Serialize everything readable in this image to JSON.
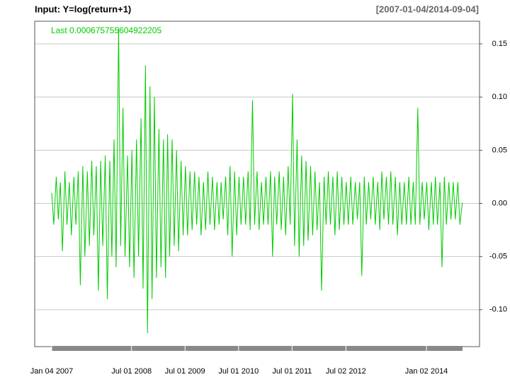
{
  "chart_data": {
    "type": "line",
    "title": "Input: Y=log(return+1)",
    "subtitle": "[2007-01-04/2014-09-04]",
    "annotation": "Last 0.000675755604922205",
    "grid": true,
    "ylim": [
      -0.1347,
      0.1713
    ],
    "yticks": [
      {
        "value": -0.1,
        "label": "-0.10"
      },
      {
        "value": -0.05,
        "label": "-0.05"
      },
      {
        "value": 0,
        "label": "0.00"
      },
      {
        "value": 0.05,
        "label": "0.05"
      },
      {
        "value": 0.1,
        "label": "0.10"
      },
      {
        "value": 0.15,
        "label": "0.15"
      }
    ],
    "xlim": [
      "2006-09-10",
      "2014-12-30"
    ],
    "xticks": [
      {
        "value": "2007-01-04",
        "label": "Jan 04 2007"
      },
      {
        "value": "2008-07-01",
        "label": "Jul 01 2008"
      },
      {
        "value": "2009-07-01",
        "label": "Jul 01 2009"
      },
      {
        "value": "2010-07-01",
        "label": "Jul 01 2010"
      },
      {
        "value": "2011-07-01",
        "label": "Jul 01 2011"
      },
      {
        "value": "2012-07-02",
        "label": "Jul 02 2012"
      },
      {
        "value": "2014-01-02",
        "label": "Jan 02 2014"
      }
    ],
    "x": [
      "2007-01-04",
      "2007-01-18",
      "2007-02-04",
      "2007-02-18",
      "2007-03-04",
      "2007-03-18",
      "2007-04-04",
      "2007-04-18",
      "2007-05-04",
      "2007-05-18",
      "2007-06-04",
      "2007-06-18",
      "2007-07-04",
      "2007-07-18",
      "2007-08-04",
      "2007-08-18",
      "2007-09-04",
      "2007-09-18",
      "2007-10-04",
      "2007-10-18",
      "2007-11-04",
      "2007-11-18",
      "2007-12-04",
      "2007-12-18",
      "2008-01-04",
      "2008-01-18",
      "2008-02-04",
      "2008-02-18",
      "2008-03-04",
      "2008-03-18",
      "2008-04-04",
      "2008-04-18",
      "2008-05-04",
      "2008-05-18",
      "2008-06-04",
      "2008-06-18",
      "2008-07-04",
      "2008-07-18",
      "2008-08-04",
      "2008-08-18",
      "2008-09-04",
      "2008-09-18",
      "2008-10-04",
      "2008-10-18",
      "2008-11-04",
      "2008-11-18",
      "2008-12-04",
      "2008-12-18",
      "2009-01-04",
      "2009-01-18",
      "2009-02-04",
      "2009-02-18",
      "2009-03-04",
      "2009-03-18",
      "2009-04-04",
      "2009-04-18",
      "2009-05-04",
      "2009-05-18",
      "2009-06-04",
      "2009-06-18",
      "2009-07-04",
      "2009-07-18",
      "2009-08-04",
      "2009-08-18",
      "2009-09-04",
      "2009-09-18",
      "2009-10-04",
      "2009-10-18",
      "2009-11-04",
      "2009-11-18",
      "2009-12-04",
      "2009-12-18",
      "2010-01-04",
      "2010-01-18",
      "2010-02-04",
      "2010-02-18",
      "2010-03-04",
      "2010-03-18",
      "2010-04-04",
      "2010-04-18",
      "2010-05-04",
      "2010-05-18",
      "2010-06-04",
      "2010-06-18",
      "2010-07-04",
      "2010-07-18",
      "2010-08-04",
      "2010-08-18",
      "2010-09-04",
      "2010-09-18",
      "2010-10-04",
      "2010-10-18",
      "2010-11-04",
      "2010-11-18",
      "2010-12-04",
      "2010-12-18",
      "2011-01-04",
      "2011-01-18",
      "2011-02-04",
      "2011-02-18",
      "2011-03-04",
      "2011-03-18",
      "2011-04-04",
      "2011-04-18",
      "2011-05-04",
      "2011-05-18",
      "2011-06-04",
      "2011-06-18",
      "2011-07-04",
      "2011-07-18",
      "2011-08-04",
      "2011-08-18",
      "2011-09-04",
      "2011-09-18",
      "2011-10-04",
      "2011-10-18",
      "2011-11-04",
      "2011-11-18",
      "2011-12-04",
      "2011-12-18",
      "2012-01-04",
      "2012-01-18",
      "2012-02-04",
      "2012-02-18",
      "2012-03-04",
      "2012-03-18",
      "2012-04-04",
      "2012-04-18",
      "2012-05-04",
      "2012-05-18",
      "2012-06-04",
      "2012-06-18",
      "2012-07-04",
      "2012-07-18",
      "2012-08-04",
      "2012-08-18",
      "2012-09-04",
      "2012-09-18",
      "2012-10-04",
      "2012-10-18",
      "2012-11-04",
      "2012-11-18",
      "2012-12-04",
      "2012-12-18",
      "2013-01-04",
      "2013-01-18",
      "2013-02-04",
      "2013-02-18",
      "2013-03-04",
      "2013-03-18",
      "2013-04-04",
      "2013-04-18",
      "2013-05-04",
      "2013-05-18",
      "2013-06-04",
      "2013-06-18",
      "2013-07-04",
      "2013-07-18",
      "2013-08-04",
      "2013-08-18",
      "2013-09-04",
      "2013-09-18",
      "2013-10-04",
      "2013-10-18",
      "2013-11-04",
      "2013-11-18",
      "2013-12-04",
      "2013-12-18",
      "2014-01-04",
      "2014-01-18",
      "2014-02-04",
      "2014-02-18",
      "2014-03-04",
      "2014-03-18",
      "2014-04-04",
      "2014-04-18",
      "2014-05-04",
      "2014-05-18",
      "2014-06-04",
      "2014-06-18",
      "2014-07-04",
      "2014-07-18",
      "2014-08-04",
      "2014-08-18",
      "2014-09-04"
    ],
    "color": "#00cc00",
    "values": [
      0.01,
      -0.02,
      0.025,
      -0.015,
      0.02,
      -0.045,
      0.03,
      -0.02,
      0.02,
      -0.03,
      0.025,
      -0.02,
      0.03,
      -0.077,
      0.035,
      -0.05,
      0.03,
      -0.04,
      0.04,
      -0.03,
      0.035,
      -0.082,
      0.04,
      -0.04,
      0.045,
      -0.09,
      0.04,
      -0.05,
      0.06,
      -0.06,
      0.165,
      -0.04,
      0.09,
      -0.05,
      0.045,
      -0.06,
      0.05,
      -0.07,
      0.06,
      -0.05,
      0.08,
      -0.08,
      0.13,
      -0.122,
      0.11,
      -0.09,
      0.1,
      -0.07,
      0.07,
      -0.06,
      0.06,
      -0.07,
      0.065,
      -0.05,
      0.06,
      -0.04,
      0.05,
      -0.045,
      0.04,
      -0.03,
      0.035,
      -0.03,
      0.03,
      -0.025,
      0.03,
      -0.02,
      0.025,
      -0.03,
      0.02,
      -0.025,
      0.03,
      -0.02,
      0.025,
      -0.025,
      0.02,
      -0.02,
      0.02,
      -0.015,
      0.025,
      -0.03,
      0.035,
      -0.05,
      0.03,
      -0.03,
      0.025,
      -0.02,
      0.025,
      -0.02,
      0.03,
      -0.025,
      0.097,
      -0.02,
      0.03,
      -0.025,
      0.02,
      -0.02,
      0.025,
      -0.02,
      0.03,
      -0.05,
      0.025,
      -0.02,
      0.03,
      -0.025,
      0.025,
      -0.03,
      0.035,
      -0.02,
      0.103,
      -0.04,
      0.06,
      -0.05,
      0.045,
      -0.04,
      0.04,
      -0.035,
      0.035,
      -0.03,
      0.03,
      -0.025,
      0.02,
      -0.082,
      0.025,
      -0.02,
      0.03,
      -0.02,
      0.025,
      -0.03,
      0.03,
      -0.025,
      0.025,
      -0.02,
      0.02,
      -0.02,
      0.025,
      -0.02,
      0.02,
      -0.015,
      0.02,
      -0.068,
      0.025,
      -0.02,
      0.02,
      -0.015,
      0.025,
      -0.02,
      0.02,
      -0.025,
      0.03,
      -0.015,
      0.025,
      -0.02,
      0.03,
      -0.02,
      0.025,
      -0.03,
      0.02,
      -0.02,
      0.02,
      -0.02,
      0.025,
      -0.02,
      0.02,
      -0.02,
      0.09,
      -0.02,
      0.02,
      -0.015,
      0.02,
      -0.025,
      0.02,
      -0.02,
      0.025,
      -0.02,
      0.02,
      -0.06,
      0.025,
      -0.02,
      0.02,
      -0.015,
      0.02,
      -0.015,
      0.02,
      -0.02,
      0.000675755604922205
    ]
  }
}
